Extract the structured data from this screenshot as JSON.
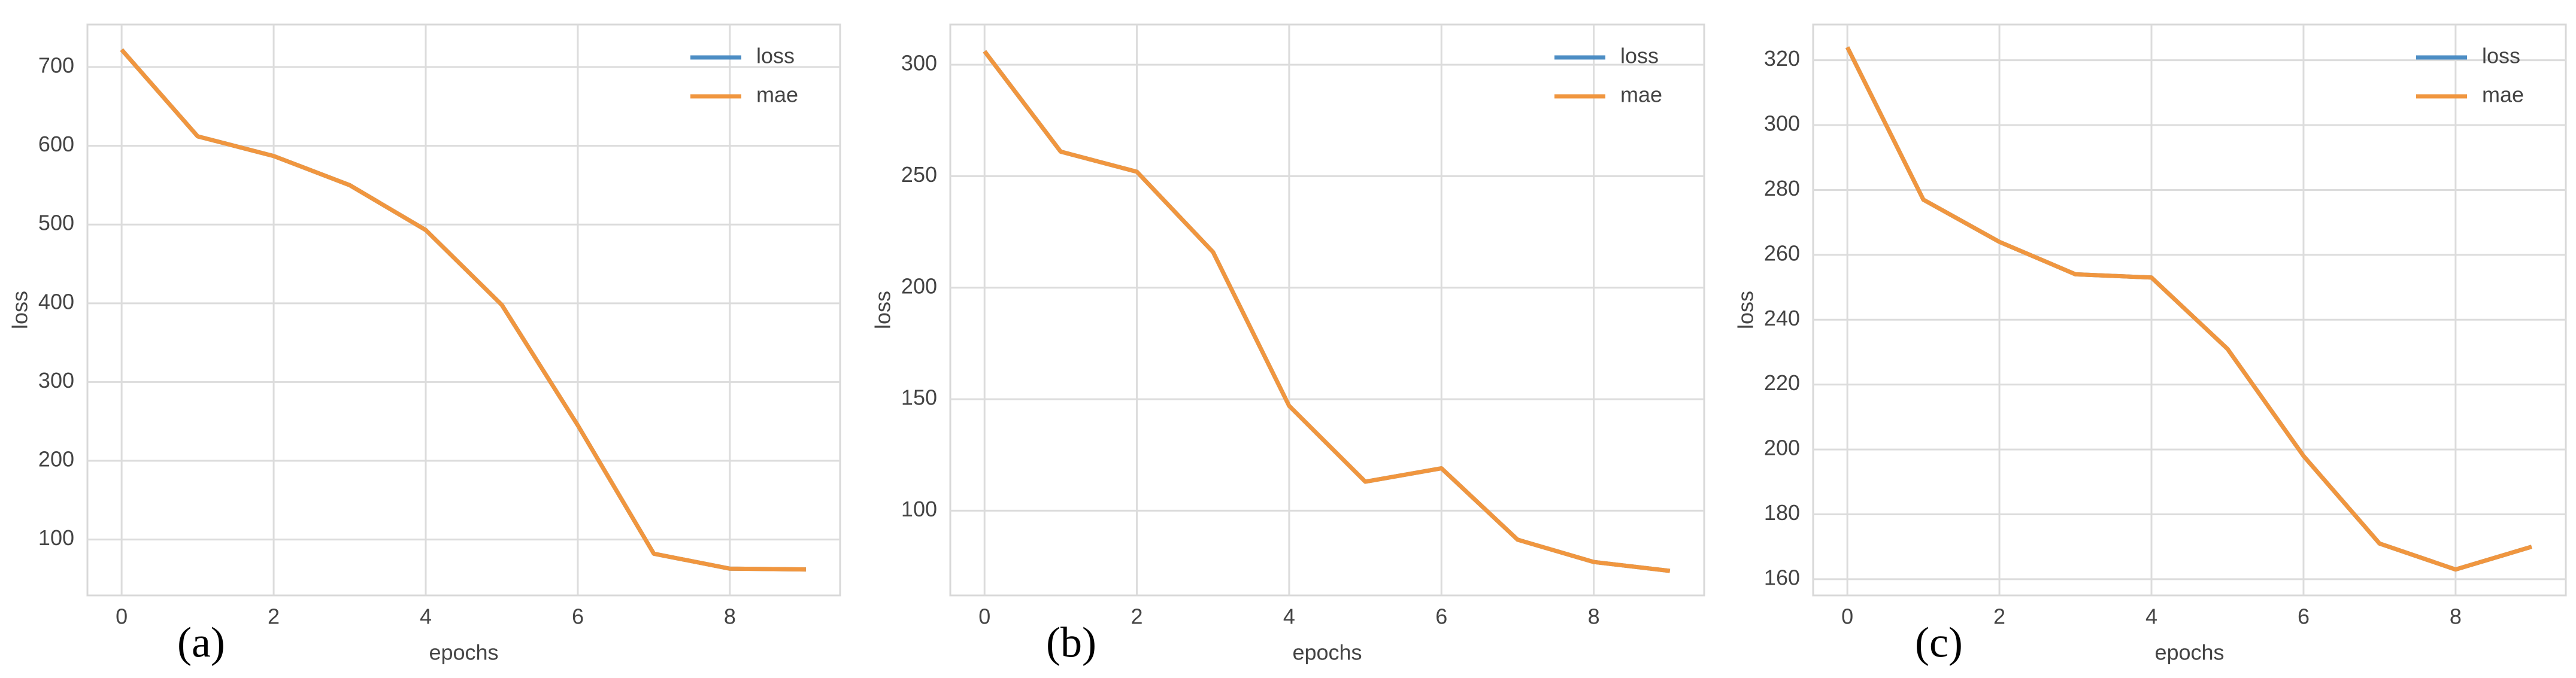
{
  "chart_data": [
    {
      "type": "line",
      "caption": "(a)",
      "xlabel": "epochs",
      "ylabel": "loss",
      "x": [
        0,
        1,
        2,
        3,
        4,
        5,
        6,
        7,
        8,
        9
      ],
      "series": [
        {
          "name": "loss",
          "color": "#4c8dc4",
          "values": [
            722,
            612,
            587,
            550,
            493,
            398,
            245,
            82,
            63,
            62
          ]
        },
        {
          "name": "mae",
          "color": "#f0963f",
          "values": [
            722,
            612,
            587,
            550,
            493,
            398,
            245,
            82,
            63,
            62
          ]
        }
      ],
      "xlim": [
        -0.45,
        9.45
      ],
      "xticks": [
        0,
        2,
        4,
        6,
        8
      ],
      "ylim": [
        29,
        754
      ],
      "yticks": [
        100,
        200,
        300,
        400,
        500,
        600,
        700
      ],
      "grid": true,
      "legend": "upper right"
    },
    {
      "type": "line",
      "caption": "(b)",
      "xlabel": "epochs",
      "ylabel": "loss",
      "x": [
        0,
        1,
        2,
        3,
        4,
        5,
        6,
        7,
        8,
        9
      ],
      "series": [
        {
          "name": "loss",
          "color": "#4c8dc4",
          "values": [
            306,
            261,
            252,
            216,
            147,
            113,
            119,
            87,
            77,
            73
          ]
        },
        {
          "name": "mae",
          "color": "#f0963f",
          "values": [
            306,
            261,
            252,
            216,
            147,
            113,
            119,
            87,
            77,
            73
          ]
        }
      ],
      "xlim": [
        -0.45,
        9.45
      ],
      "xticks": [
        0,
        2,
        4,
        6,
        8
      ],
      "ylim": [
        62,
        318
      ],
      "yticks": [
        100,
        150,
        200,
        250,
        300
      ],
      "grid": true,
      "legend": "upper right"
    },
    {
      "type": "line",
      "caption": "(c)",
      "xlabel": "epochs",
      "ylabel": "loss",
      "x": [
        0,
        1,
        2,
        3,
        4,
        5,
        6,
        7,
        8,
        9
      ],
      "series": [
        {
          "name": "loss",
          "color": "#4c8dc4",
          "values": [
            324,
            277,
            264,
            254,
            253,
            231,
            198,
            171,
            163,
            170
          ]
        },
        {
          "name": "mae",
          "color": "#f0963f",
          "values": [
            324,
            277,
            264,
            254,
            253,
            231,
            198,
            171,
            163,
            170
          ]
        }
      ],
      "xlim": [
        -0.45,
        9.45
      ],
      "xticks": [
        0,
        2,
        4,
        6,
        8
      ],
      "ylim": [
        155,
        331
      ],
      "yticks": [
        160,
        180,
        200,
        220,
        240,
        260,
        280,
        300,
        320
      ],
      "grid": true,
      "legend": "upper right"
    }
  ]
}
